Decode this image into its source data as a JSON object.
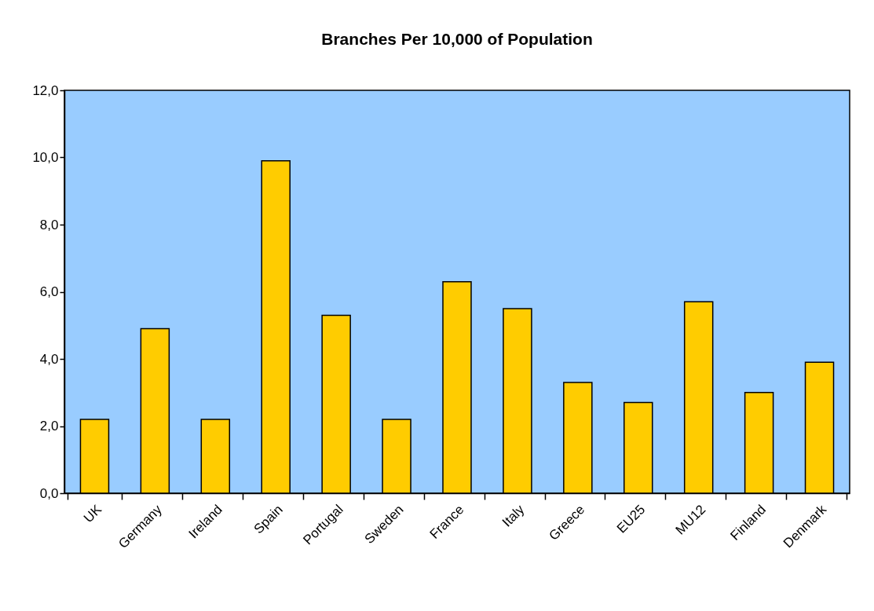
{
  "chart_data": {
    "type": "bar",
    "title": "Branches Per 10,000 of Population",
    "categories": [
      "UK",
      "Germany",
      "Ireland",
      "Spain",
      "Portugal",
      "Sweden",
      "France",
      "Italy",
      "Greece",
      "EU25",
      "MU12",
      "Finland",
      "Denmark"
    ],
    "values": [
      2.2,
      4.9,
      2.2,
      9.9,
      5.3,
      2.2,
      6.3,
      5.5,
      3.3,
      2.7,
      5.7,
      3.0,
      3.9
    ],
    "color": "#ffcc00",
    "ylim": [
      0,
      12
    ],
    "yticks": [
      {
        "value": 0,
        "label": "0,0"
      },
      {
        "value": 2,
        "label": "2,0"
      },
      {
        "value": 4,
        "label": "4,0"
      },
      {
        "value": 6,
        "label": "6,0"
      },
      {
        "value": 8,
        "label": "8,0"
      },
      {
        "value": 10,
        "label": "10,0"
      },
      {
        "value": 12,
        "label": "12,0"
      }
    ],
    "grid": false
  }
}
